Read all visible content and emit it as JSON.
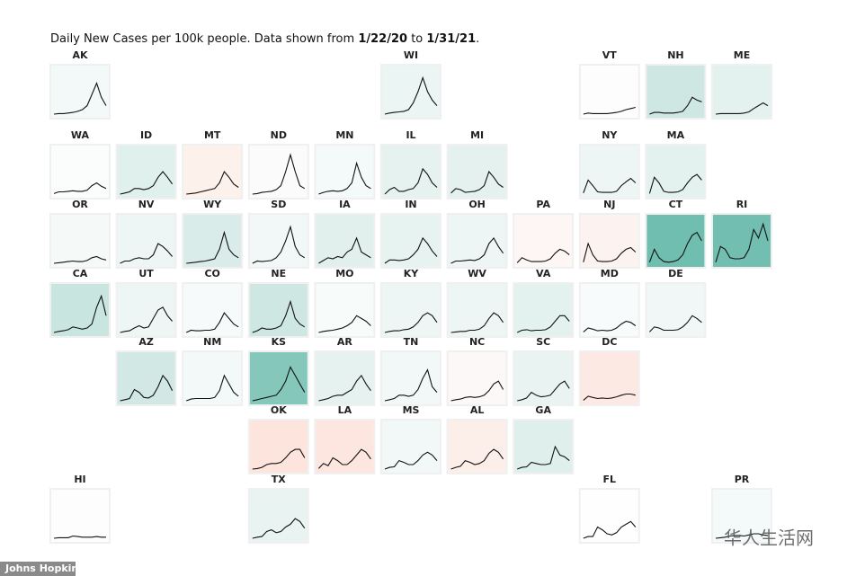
{
  "chart_data": {
    "type": "small-multiples",
    "title": {
      "intro": "Daily New Cases per 100k people. Data shown from",
      "start": "1/22/20",
      "joiner": "to",
      "end": "1/31/21",
      "stop": "."
    },
    "ylim": [
      0,
      80
    ],
    "tiles": [
      {
        "name": "AK",
        "color": "#f3f9f9",
        "values": [
          0,
          1,
          1,
          2,
          3,
          5,
          8,
          15,
          35,
          55,
          30,
          15
        ]
      },
      {
        "name": "WI",
        "color": "#eaf5f4",
        "values": [
          0,
          2,
          3,
          4,
          5,
          8,
          20,
          40,
          65,
          40,
          25,
          15
        ]
      },
      {
        "name": "VT",
        "color": "#fdfdfd",
        "values": [
          0,
          2,
          1,
          1,
          1,
          1,
          2,
          3,
          5,
          8,
          10,
          12
        ]
      },
      {
        "name": "NH",
        "color": "#cfe7e3",
        "values": [
          0,
          3,
          3,
          2,
          2,
          2,
          3,
          5,
          15,
          30,
          25,
          22
        ]
      },
      {
        "name": "ME",
        "color": "#e3f1ef",
        "values": [
          0,
          1,
          1,
          1,
          1,
          1,
          2,
          4,
          10,
          15,
          20,
          15
        ]
      },
      {
        "name": "WA",
        "color": "#fbfcfc",
        "values": [
          1,
          4,
          4,
          5,
          6,
          5,
          5,
          7,
          15,
          20,
          14,
          10
        ]
      },
      {
        "name": "ID",
        "color": "#e0f0ed",
        "values": [
          0,
          2,
          4,
          10,
          10,
          8,
          10,
          15,
          30,
          40,
          30,
          18
        ]
      },
      {
        "name": "MT",
        "color": "#fdf1ec",
        "values": [
          0,
          1,
          2,
          4,
          6,
          8,
          10,
          20,
          40,
          30,
          18,
          12
        ]
      },
      {
        "name": "ND",
        "color": "#fbfbfb",
        "values": [
          0,
          1,
          3,
          4,
          5,
          8,
          15,
          40,
          70,
          40,
          15,
          10
        ]
      },
      {
        "name": "MN",
        "color": "#f4f9f9",
        "values": [
          0,
          3,
          5,
          6,
          5,
          6,
          10,
          20,
          55,
          30,
          15,
          10
        ]
      },
      {
        "name": "IL",
        "color": "#e6f2f0",
        "values": [
          0,
          8,
          12,
          5,
          5,
          8,
          10,
          20,
          45,
          35,
          20,
          12
        ]
      },
      {
        "name": "MI",
        "color": "#e4f1ef",
        "values": [
          2,
          10,
          8,
          3,
          4,
          5,
          8,
          15,
          40,
          30,
          18,
          12
        ]
      },
      {
        "name": "NY",
        "color": "#eef6f5",
        "values": [
          2,
          25,
          15,
          4,
          3,
          3,
          3,
          5,
          15,
          22,
          28,
          20
        ]
      },
      {
        "name": "MA",
        "color": "#e3f1ef",
        "values": [
          1,
          30,
          20,
          5,
          3,
          3,
          4,
          8,
          20,
          30,
          35,
          25
        ]
      },
      {
        "name": "OR",
        "color": "#f5faf9",
        "values": [
          0,
          1,
          2,
          3,
          4,
          3,
          3,
          5,
          10,
          12,
          8,
          6
        ]
      },
      {
        "name": "NV",
        "color": "#eef6f5",
        "values": [
          0,
          4,
          4,
          8,
          10,
          8,
          8,
          15,
          35,
          30,
          22,
          12
        ]
      },
      {
        "name": "WY",
        "color": "#d9ece9",
        "values": [
          0,
          1,
          2,
          3,
          4,
          6,
          8,
          25,
          55,
          25,
          15,
          10
        ]
      },
      {
        "name": "SD",
        "color": "#f2f8f7",
        "values": [
          0,
          4,
          3,
          4,
          5,
          10,
          20,
          40,
          65,
          30,
          15,
          10
        ]
      },
      {
        "name": "IA",
        "color": "#e1f0ed",
        "values": [
          0,
          5,
          10,
          8,
          12,
          10,
          20,
          25,
          45,
          20,
          15,
          10
        ]
      },
      {
        "name": "IN",
        "color": "#e7f3f1",
        "values": [
          0,
          6,
          6,
          5,
          6,
          8,
          15,
          25,
          45,
          35,
          22,
          12
        ]
      },
      {
        "name": "OH",
        "color": "#eef6f5",
        "values": [
          0,
          4,
          4,
          5,
          6,
          5,
          8,
          15,
          35,
          45,
          30,
          18
        ]
      },
      {
        "name": "PA",
        "color": "#fdf6f4",
        "values": [
          1,
          10,
          6,
          3,
          3,
          3,
          4,
          8,
          18,
          25,
          22,
          15
        ]
      },
      {
        "name": "NJ",
        "color": "#fcf2ef",
        "values": [
          2,
          35,
          15,
          4,
          3,
          3,
          4,
          8,
          18,
          25,
          28,
          20
        ]
      },
      {
        "name": "CT",
        "color": "#6fbeb0",
        "values": [
          2,
          25,
          10,
          3,
          2,
          3,
          6,
          15,
          35,
          50,
          55,
          40
        ]
      },
      {
        "name": "RI",
        "color": "#72bfb2",
        "values": [
          2,
          30,
          25,
          10,
          8,
          8,
          10,
          25,
          60,
          45,
          70,
          40
        ]
      },
      {
        "name": "CA",
        "color": "#c8e5df",
        "values": [
          0,
          2,
          3,
          5,
          10,
          8,
          6,
          8,
          15,
          45,
          65,
          30
        ]
      },
      {
        "name": "UT",
        "color": "#eef6f5",
        "values": [
          0,
          2,
          3,
          8,
          12,
          8,
          10,
          25,
          40,
          45,
          30,
          20
        ]
      },
      {
        "name": "CO",
        "color": "#f6fafa",
        "values": [
          0,
          4,
          3,
          3,
          4,
          4,
          6,
          18,
          35,
          25,
          15,
          10
        ]
      },
      {
        "name": "NE",
        "color": "#cfe7e3",
        "values": [
          0,
          3,
          8,
          6,
          6,
          8,
          12,
          30,
          55,
          25,
          15,
          10
        ]
      },
      {
        "name": "MO",
        "color": "#f7fbfa",
        "values": [
          0,
          2,
          3,
          4,
          6,
          8,
          12,
          18,
          30,
          25,
          20,
          12
        ]
      },
      {
        "name": "KY",
        "color": "#eef6f5",
        "values": [
          0,
          2,
          3,
          3,
          5,
          6,
          10,
          18,
          30,
          35,
          30,
          18
        ]
      },
      {
        "name": "WV",
        "color": "#eef6f5",
        "values": [
          0,
          1,
          2,
          2,
          4,
          4,
          6,
          12,
          25,
          35,
          30,
          18
        ]
      },
      {
        "name": "VA",
        "color": "#e3f1ef",
        "values": [
          0,
          4,
          5,
          3,
          4,
          4,
          5,
          10,
          20,
          30,
          30,
          20
        ]
      },
      {
        "name": "MD",
        "color": "#f8fbfb",
        "values": [
          1,
          8,
          6,
          3,
          4,
          3,
          4,
          8,
          15,
          20,
          18,
          12
        ]
      },
      {
        "name": "DE",
        "color": "#f1f7f6",
        "values": [
          1,
          10,
          8,
          4,
          4,
          4,
          5,
          10,
          18,
          30,
          25,
          18
        ]
      },
      {
        "name": "AZ",
        "color": "#d2e8e4",
        "values": [
          0,
          2,
          4,
          20,
          15,
          6,
          5,
          10,
          25,
          45,
          35,
          18
        ]
      },
      {
        "name": "NM",
        "color": "#f3f9f9",
        "values": [
          0,
          3,
          4,
          4,
          4,
          4,
          6,
          18,
          45,
          30,
          15,
          8
        ]
      },
      {
        "name": "KS",
        "color": "#85c7bb",
        "values": [
          0,
          2,
          4,
          6,
          8,
          10,
          20,
          35,
          60,
          45,
          30,
          15
        ]
      },
      {
        "name": "AR",
        "color": "#e5f2ef",
        "values": [
          0,
          2,
          4,
          8,
          10,
          10,
          15,
          20,
          35,
          45,
          30,
          18
        ]
      },
      {
        "name": "TN",
        "color": "#f2f8f7",
        "values": [
          0,
          2,
          4,
          10,
          10,
          8,
          10,
          20,
          40,
          55,
          25,
          15
        ]
      },
      {
        "name": "NC",
        "color": "#fcf8f7",
        "values": [
          0,
          2,
          3,
          6,
          7,
          6,
          7,
          10,
          18,
          30,
          35,
          20
        ]
      },
      {
        "name": "SC",
        "color": "#e9f4f2",
        "values": [
          0,
          2,
          5,
          15,
          10,
          7,
          8,
          10,
          20,
          30,
          35,
          22
        ]
      },
      {
        "name": "DC",
        "color": "#fde9e3",
        "values": [
          1,
          8,
          6,
          4,
          5,
          4,
          5,
          7,
          10,
          12,
          12,
          10
        ]
      },
      {
        "name": "OK",
        "color": "#fde4dc",
        "values": [
          0,
          1,
          3,
          8,
          10,
          10,
          12,
          20,
          30,
          35,
          35,
          20
        ]
      },
      {
        "name": "LA",
        "color": "#fde6df",
        "values": [
          1,
          10,
          6,
          20,
          15,
          8,
          8,
          15,
          25,
          35,
          30,
          18
        ]
      },
      {
        "name": "MS",
        "color": "#f2f8f7",
        "values": [
          0,
          3,
          4,
          15,
          12,
          8,
          8,
          15,
          25,
          30,
          25,
          15
        ]
      },
      {
        "name": "AL",
        "color": "#fcefea",
        "values": [
          0,
          3,
          5,
          15,
          12,
          8,
          10,
          15,
          28,
          35,
          30,
          18
        ]
      },
      {
        "name": "GA",
        "color": "#dfefeb",
        "values": [
          0,
          3,
          4,
          12,
          10,
          8,
          8,
          10,
          40,
          25,
          22,
          15
        ]
      },
      {
        "name": "HI",
        "color": "#fdfdfd",
        "values": [
          0,
          1,
          1,
          1,
          4,
          3,
          2,
          2,
          2,
          3,
          2,
          2
        ]
      },
      {
        "name": "TX",
        "color": "#e9f4f2",
        "values": [
          0,
          2,
          3,
          12,
          15,
          10,
          12,
          20,
          25,
          35,
          30,
          18
        ]
      },
      {
        "name": "FL",
        "color": "#fefefe",
        "values": [
          0,
          3,
          3,
          20,
          15,
          8,
          6,
          10,
          20,
          25,
          30,
          20
        ]
      },
      {
        "name": "PR",
        "color": "#f4f9f9",
        "values": [
          0,
          1,
          2,
          4,
          5,
          5,
          4,
          6,
          8,
          8,
          6,
          5
        ]
      }
    ],
    "credit": "Johns Hopkins",
    "watermark": "华人生活网"
  }
}
